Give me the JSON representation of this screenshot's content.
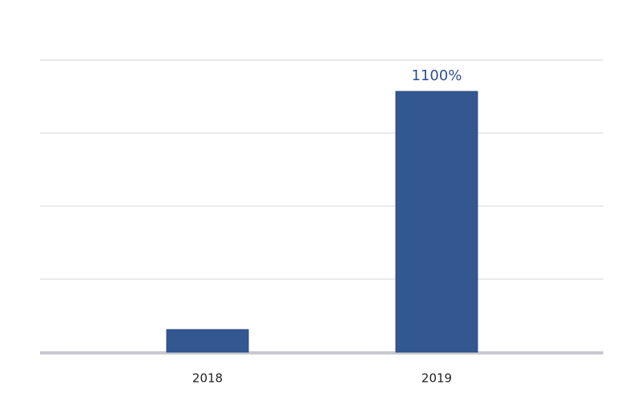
{
  "chart_data": {
    "type": "bar",
    "categories": [
      "2018",
      "2019"
    ],
    "values": [
      95,
      1100
    ],
    "value_labels": [
      null,
      "1100%"
    ],
    "color": "#335791",
    "ylim": [
      0,
      1232
    ],
    "yticks": [
      0,
      308,
      616,
      924,
      1232
    ],
    "grid": true
  }
}
